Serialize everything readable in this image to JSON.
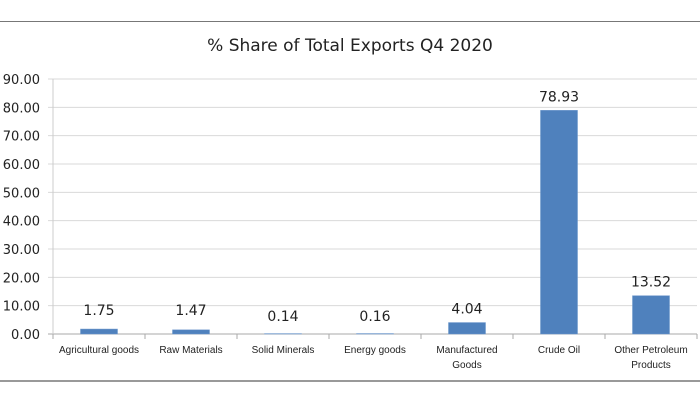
{
  "chart_data": {
    "type": "bar",
    "title": "% Share of Total Exports Q4 2020",
    "xlabel": "",
    "ylabel": "",
    "ylim": [
      0,
      90
    ],
    "yticks": [
      "0.00",
      "10.00",
      "20.00",
      "30.00",
      "40.00",
      "50.00",
      "60.00",
      "70.00",
      "80.00",
      "90.00"
    ],
    "categories": [
      [
        "Agricultural goods"
      ],
      [
        "Raw Materials"
      ],
      [
        "Solid Minerals"
      ],
      [
        "Energy goods"
      ],
      [
        "Manufactured",
        "Goods"
      ],
      [
        "Crude Oil"
      ],
      [
        "Other Petroleum",
        "Products"
      ]
    ],
    "values": [
      1.75,
      1.47,
      0.14,
      0.16,
      4.04,
      78.93,
      13.52
    ],
    "data_labels": [
      "1.75",
      "1.47",
      "0.14",
      "0.16",
      "4.04",
      "78.93",
      "13.52"
    ],
    "grid": true,
    "bar_color": "#4f81bd"
  }
}
